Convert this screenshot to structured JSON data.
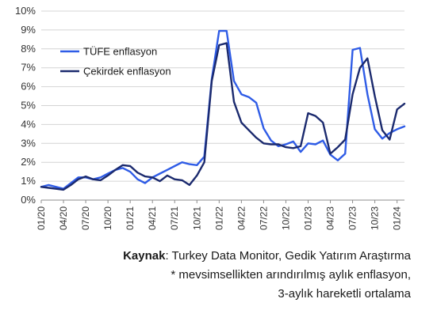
{
  "chart_data": {
    "type": "line",
    "title": "",
    "xlabel": "",
    "ylabel": "",
    "ylim": [
      0,
      10
    ],
    "yticks": [
      "0%",
      "1%",
      "2%",
      "3%",
      "4%",
      "5%",
      "6%",
      "7%",
      "8%",
      "9%",
      "10%"
    ],
    "x": [
      "01/20",
      "02/20",
      "03/20",
      "04/20",
      "05/20",
      "06/20",
      "07/20",
      "08/20",
      "09/20",
      "10/20",
      "11/20",
      "12/20",
      "01/21",
      "02/21",
      "03/21",
      "04/21",
      "05/21",
      "06/21",
      "07/21",
      "08/21",
      "09/21",
      "10/21",
      "11/21",
      "12/21",
      "01/22",
      "02/22",
      "03/22",
      "04/22",
      "05/22",
      "06/22",
      "07/22",
      "08/22",
      "09/22",
      "10/22",
      "11/22",
      "12/22",
      "01/23",
      "02/23",
      "03/23",
      "04/23",
      "05/23",
      "06/23",
      "07/23",
      "08/23",
      "09/23",
      "10/23",
      "11/23",
      "12/23",
      "01/24",
      "02/24"
    ],
    "xtick_labels": [
      "01/20",
      "04/20",
      "07/20",
      "10/20",
      "01/21",
      "04/21",
      "07/21",
      "10/21",
      "01/22",
      "04/22",
      "07/22",
      "10/22",
      "01/23",
      "04/23",
      "07/23",
      "10/23",
      "01/24"
    ],
    "legend_position": "top-left",
    "grid": "horizontal",
    "series": [
      {
        "name": "TÜFE enflasyon",
        "color": "#2f5ce6",
        "values": [
          0.7,
          0.8,
          0.7,
          0.6,
          0.9,
          1.2,
          1.2,
          1.1,
          1.2,
          1.4,
          1.6,
          1.7,
          1.5,
          1.1,
          0.9,
          1.2,
          1.4,
          1.6,
          1.8,
          2.0,
          1.9,
          1.85,
          2.3,
          6.4,
          8.95,
          8.95,
          6.3,
          5.6,
          5.45,
          5.15,
          3.8,
          3.15,
          2.85,
          2.95,
          3.1,
          2.55,
          3.0,
          2.95,
          3.15,
          2.4,
          2.1,
          2.45,
          7.95,
          8.05,
          5.6,
          3.75,
          3.25,
          3.55,
          3.75,
          3.9
        ]
      },
      {
        "name": "Çekirdek enflasyon",
        "color": "#1b2a6e",
        "values": [
          0.7,
          0.65,
          0.6,
          0.55,
          0.8,
          1.1,
          1.25,
          1.1,
          1.05,
          1.3,
          1.6,
          1.85,
          1.8,
          1.45,
          1.25,
          1.2,
          1.0,
          1.3,
          1.1,
          1.05,
          0.8,
          1.3,
          2.0,
          6.3,
          8.2,
          8.3,
          5.2,
          4.1,
          3.7,
          3.3,
          3.0,
          2.95,
          2.95,
          2.8,
          2.75,
          2.85,
          4.6,
          4.45,
          4.1,
          2.45,
          2.8,
          3.2,
          5.6,
          7.0,
          7.5,
          5.5,
          3.7,
          3.2,
          4.8,
          5.1
        ]
      }
    ]
  },
  "caption": {
    "source_label": "Kaynak",
    "source_text": ": Turkey Data Monitor, Gedik Yatırım Araştırma",
    "note_line1": "* mevsimsellikten arındırılmış aylık enflasyon,",
    "note_line2": "3-aylık hareketli ortalama"
  }
}
